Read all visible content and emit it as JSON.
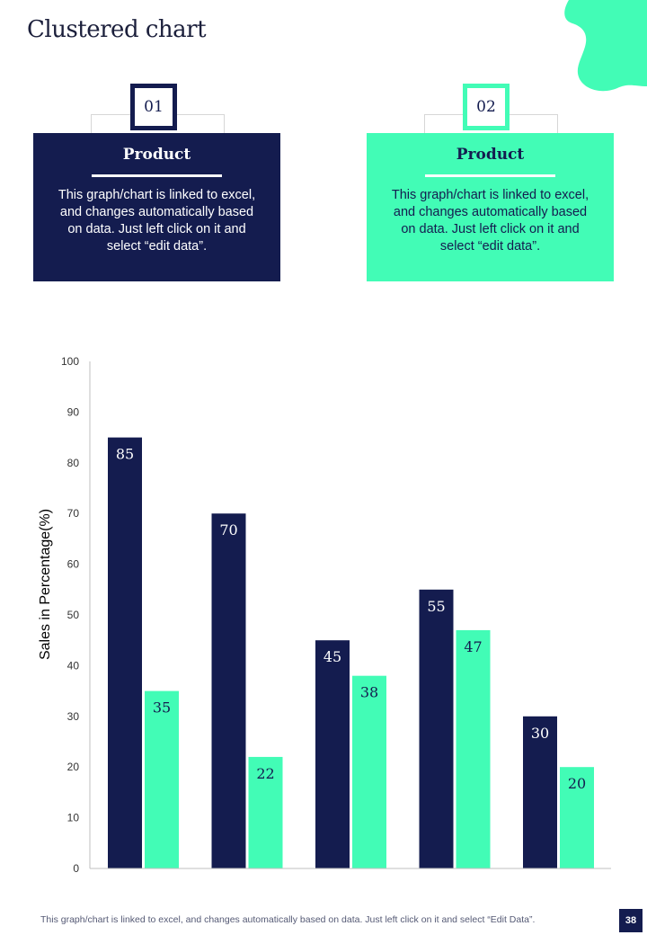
{
  "page": {
    "title": "Clustered chart",
    "page_number": "38"
  },
  "colors": {
    "navy": "#141C4F",
    "mint": "#42FCB6"
  },
  "cards": [
    {
      "number": "01",
      "title": "Product",
      "text": "This graph/chart is linked to excel, and changes automatically based on data. Just left click on it and select “edit data”."
    },
    {
      "number": "02",
      "title": "Product",
      "text": "This graph/chart is linked to excel, and changes automatically based on data. Just left click on it and select “edit data”."
    }
  ],
  "footer": {
    "text": "This graph/chart is linked to excel,  and changes automatically based on data. Just left click on it and select “Edit Data”."
  },
  "chart_data": {
    "type": "bar",
    "title": "",
    "xlabel": "",
    "ylabel": "Sales in Percentage(%)",
    "ylim": [
      0,
      100
    ],
    "yticks": [
      0,
      10,
      20,
      30,
      40,
      50,
      60,
      70,
      80,
      90,
      100
    ],
    "categories": [
      "",
      "",
      "",
      "",
      ""
    ],
    "series": [
      {
        "name": "Product 01",
        "color": "#141C4F",
        "values": [
          85,
          70,
          45,
          55,
          30
        ]
      },
      {
        "name": "Product 02",
        "color": "#42FCB6",
        "values": [
          35,
          22,
          38,
          47,
          20
        ]
      }
    ],
    "grid": false,
    "legend": "none"
  }
}
